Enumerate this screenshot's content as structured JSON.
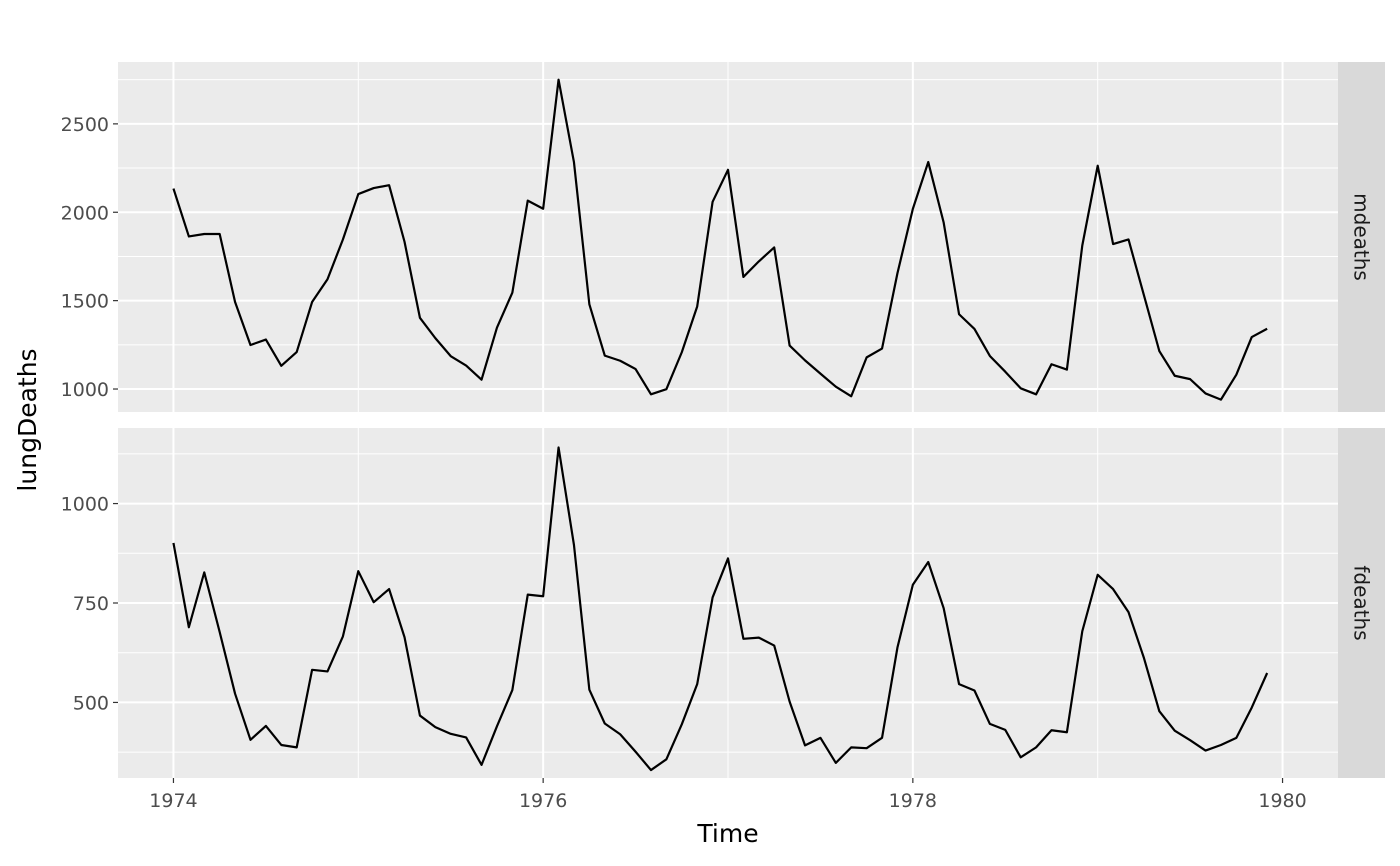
{
  "chart_data": {
    "type": "line",
    "xlabel": "Time",
    "ylabel": "lungDeaths",
    "x_ticks": [
      1974,
      1976,
      1978,
      1980
    ],
    "x_tick_labels": [
      "1974",
      "1976",
      "1978",
      "1980"
    ],
    "xlim": [
      1973.7,
      1980.3
    ],
    "start": 1974,
    "frequency": 12,
    "grid": true,
    "legend": "none",
    "line_color": "#000000",
    "panel_background": "#ebebeb",
    "strip_background": "#d9d9d9",
    "panels": [
      {
        "strip": "mdeaths",
        "ylim": [
          870,
          2850
        ],
        "y_ticks": [
          1000,
          1500,
          2000,
          2500
        ],
        "y_tick_labels": [
          "1000",
          "1500",
          "2000",
          "2500"
        ],
        "values": [
          2134,
          1863,
          1877,
          1877,
          1492,
          1249,
          1280,
          1131,
          1209,
          1492,
          1621,
          1846,
          2103,
          2137,
          2153,
          1833,
          1403,
          1288,
          1186,
          1133,
          1053,
          1347,
          1545,
          2066,
          2020,
          2750,
          2283,
          1479,
          1189,
          1160,
          1113,
          970,
          999,
          1208,
          1467,
          2059,
          2240,
          1634,
          1722,
          1801,
          1246,
          1162,
          1087,
          1013,
          959,
          1179,
          1229,
          1655,
          2019,
          2284,
          1942,
          1423,
          1340,
          1187,
          1098,
          1004,
          970,
          1140,
          1110,
          1812,
          2263,
          1820,
          1846,
          1531,
          1215,
          1075,
          1056,
          975,
          940,
          1081,
          1294,
          1341
        ]
      },
      {
        "strip": "fdeaths",
        "ylim": [
          310,
          1190
        ],
        "y_ticks": [
          500,
          750,
          1000
        ],
        "y_tick_labels": [
          "500",
          "750",
          "1000"
        ],
        "values": [
          901,
          689,
          827,
          677,
          522,
          406,
          441,
          393,
          387,
          582,
          578,
          666,
          830,
          752,
          785,
          664,
          467,
          438,
          421,
          412,
          343,
          440,
          531,
          771,
          767,
          1141,
          896,
          532,
          447,
          420,
          376,
          330,
          357,
          445,
          546,
          764,
          862,
          660,
          663,
          643,
          502,
          392,
          411,
          348,
          387,
          385,
          411,
          638,
          796,
          853,
          737,
          546,
          530,
          446,
          431,
          362,
          387,
          430,
          425,
          679,
          821,
          785,
          727,
          612,
          478,
          429,
          405,
          379,
          393,
          411,
          487,
          574
        ]
      }
    ]
  }
}
